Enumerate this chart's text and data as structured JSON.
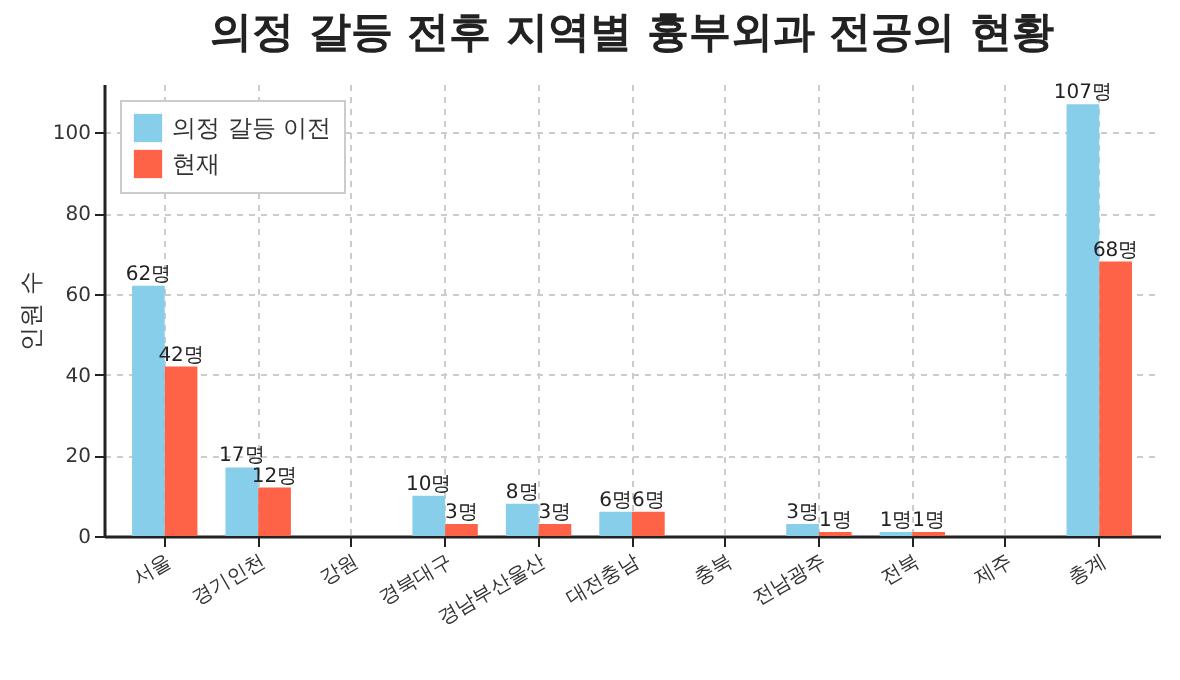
{
  "chart_data": {
    "type": "bar",
    "title": "의정 갈등 전후 지역별 흉부외과 전공의 현황",
    "ylabel": "인원 수",
    "categories": [
      "서울",
      "경기인천",
      "강원",
      "경북대구",
      "경남부산울산",
      "대전충남",
      "충북",
      "전남광주",
      "전북",
      "제주",
      "총계"
    ],
    "series": [
      {
        "name": "의정 갈등 이전",
        "color": "#87ceeb",
        "values": [
          62,
          17,
          0,
          10,
          8,
          6,
          0,
          3,
          1,
          0,
          107
        ],
        "value_labels": [
          "62명",
          "17명",
          null,
          "10명",
          "8명",
          "6명",
          null,
          "3명",
          "1명",
          null,
          "107명"
        ]
      },
      {
        "name": "현재",
        "color": "#ff6347",
        "values": [
          42,
          12,
          0,
          3,
          3,
          6,
          0,
          1,
          1,
          0,
          68
        ],
        "value_labels": [
          "42명",
          "12명",
          null,
          "3명",
          "3명",
          "6명",
          null,
          "1명",
          "1명",
          null,
          "68명"
        ]
      }
    ],
    "ylim": [
      0,
      112
    ],
    "yticks": [
      0,
      20,
      40,
      60,
      80,
      100
    ],
    "grid": true,
    "legend": "top left"
  }
}
